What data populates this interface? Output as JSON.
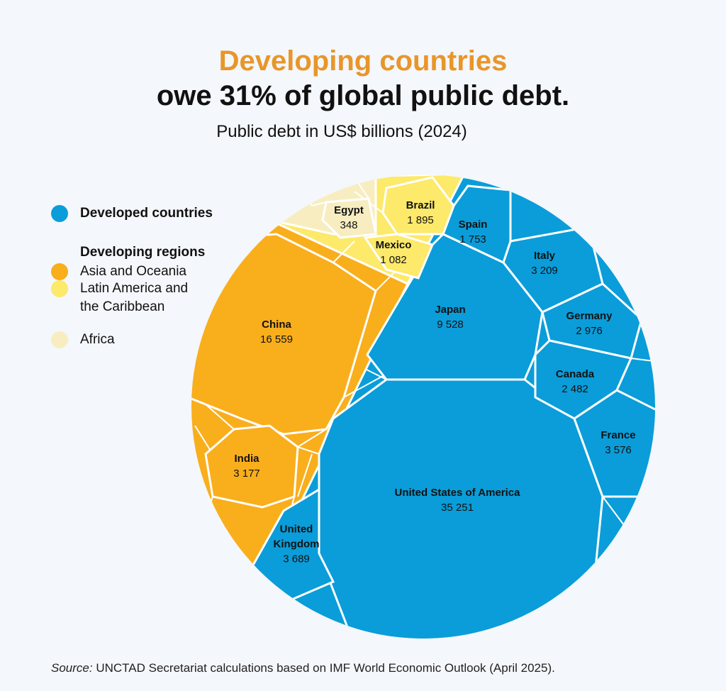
{
  "chart_data": {
    "type": "voronoi-treemap",
    "title_lines": [
      "Developing countries",
      "owe 31% of global public debt."
    ],
    "title_colors": [
      "#e8962a",
      "#111111"
    ],
    "subtitle": "Public debt in US$ billions (2024)",
    "legend_heading": "Developing regions",
    "series": [
      {
        "name": "Developed countries",
        "color": "#0a9dd9",
        "categories": [
          "United States of America",
          "Japan",
          "United Kingdom",
          "France",
          "Italy",
          "Germany",
          "Canada",
          "Spain"
        ],
        "values": [
          35251,
          9528,
          3689,
          3576,
          3209,
          2976,
          2482,
          1753
        ],
        "value_labels": [
          "35 251",
          "9 528",
          "3 689",
          "3 576",
          "3 209",
          "2 976",
          "2 482",
          "1 753"
        ]
      },
      {
        "name": "Asia and Oceania",
        "color": "#f9ae1c",
        "categories": [
          "China",
          "India"
        ],
        "values": [
          16559,
          3177
        ],
        "value_labels": [
          "16 559",
          "3 177"
        ]
      },
      {
        "name": "Latin America and the Caribbean",
        "color": "#fde96a",
        "categories": [
          "Brazil",
          "Mexico"
        ],
        "values": [
          1895,
          1082
        ],
        "value_labels": [
          "1 895",
          "1 082"
        ]
      },
      {
        "name": "Africa",
        "color": "#f8edc0",
        "categories": [
          "Egypt"
        ],
        "values": [
          348
        ],
        "value_labels": [
          "348"
        ]
      }
    ],
    "source_label": "Source:",
    "source": "UNCTAD Secretariat calculations based on IMF World Economic Outlook (April 2025)."
  }
}
